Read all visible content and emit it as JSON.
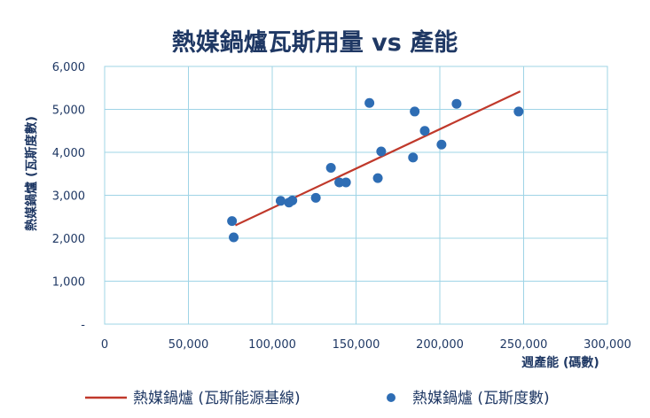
{
  "chart_data": {
    "type": "scatter",
    "title": "熱媒鍋爐瓦斯用量 vs 產能",
    "xlabel": "週產能 (碼數)",
    "ylabel": "熱媒鍋爐 (瓦斯度數)",
    "xlim": [
      0,
      300000
    ],
    "ylim": [
      0,
      6000
    ],
    "xticks": [
      "0",
      "50,000",
      "100,000",
      "150,000",
      "200,000",
      "250,000",
      "300,000"
    ],
    "yticks": [
      "-",
      "1,000",
      "2,000",
      "3,000",
      "4,000",
      "5,000",
      "6,000"
    ],
    "grid": true,
    "legend_position": "bottom",
    "colors": {
      "scatter": "#2e6db4",
      "trend": "#c0392b",
      "grid": "#9fd4e6",
      "text": "#1f3864"
    },
    "series": [
      {
        "name": "熱媒鍋爐 (瓦斯度數)",
        "kind": "scatter",
        "points": [
          [
            76000,
            2400
          ],
          [
            77000,
            2020
          ],
          [
            105000,
            2870
          ],
          [
            110000,
            2830
          ],
          [
            112000,
            2880
          ],
          [
            126000,
            2940
          ],
          [
            135000,
            3640
          ],
          [
            140000,
            3300
          ],
          [
            144000,
            3300
          ],
          [
            158000,
            5150
          ],
          [
            163000,
            3400
          ],
          [
            165000,
            4020
          ],
          [
            184000,
            3880
          ],
          [
            185000,
            4950
          ],
          [
            191000,
            4500
          ],
          [
            201000,
            4180
          ],
          [
            210000,
            5130
          ],
          [
            247000,
            4950
          ]
        ]
      },
      {
        "name": "熱媒鍋爐 (瓦斯能源基線)",
        "kind": "line",
        "points": [
          [
            78000,
            2300
          ],
          [
            248000,
            5420
          ]
        ]
      }
    ]
  }
}
